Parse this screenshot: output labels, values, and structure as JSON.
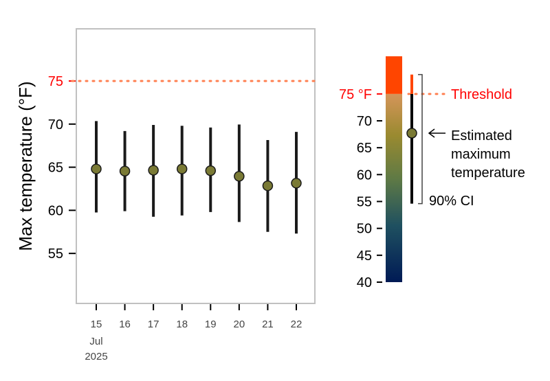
{
  "chart_data": {
    "type": "scatter",
    "ylabel": "Max temperature (°F)",
    "x_tick_labels": [
      "15",
      "16",
      "17",
      "18",
      "19",
      "20",
      "21",
      "22"
    ],
    "x_sub_labels": [
      "Jul",
      "2025"
    ],
    "y_ticks": [
      55,
      60,
      65,
      70,
      75
    ],
    "ylim": [
      49.2,
      81.05
    ],
    "threshold": 75,
    "series": [
      {
        "estimate": [
          64.8,
          64.55,
          64.65,
          64.8,
          64.6,
          63.95,
          62.85,
          63.15
        ],
        "ci_lower": [
          59.75,
          59.9,
          59.25,
          59.4,
          59.8,
          58.65,
          57.5,
          57.3
        ],
        "ci_upper": [
          70.35,
          69.2,
          69.9,
          69.8,
          69.6,
          69.95,
          68.15,
          69.1
        ]
      }
    ],
    "legend": {
      "scale_ticks": [
        40,
        45,
        50,
        55,
        60,
        65,
        70
      ],
      "threshold_tick_label": "75 °F",
      "threshold_label": "Threshold",
      "estimate_label_lines": [
        "Estimated",
        "maximum",
        "temperature"
      ],
      "ci_label": "90% CI",
      "scale_range": [
        40,
        82
      ],
      "example_estimate": 67.7,
      "example_ci": [
        54.6,
        78.6
      ]
    },
    "colors": {
      "point": "#7a7a35",
      "threshold": "#ff0000",
      "threshold_line": "#ff7f50",
      "above_threshold": "#ff4500",
      "ci": "#1a1a1a",
      "scale_low": "#001a55",
      "scale_mid": "#5f7a45",
      "scale_high": "#d5955a"
    }
  }
}
